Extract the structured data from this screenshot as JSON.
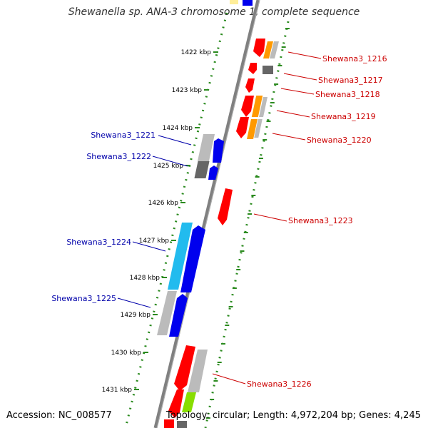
{
  "title": "Shewanella sp. ANA-3 chromosome 1, complete sequence",
  "accession_text": "Accession: NC_008577",
  "topology_text": "Topology: circular; Length: 4,972,204 bp; Genes: 4,245",
  "colors": {
    "backbone": "#808080",
    "tick": "#2a8a1e",
    "label_forward": "#cc0000",
    "label_reverse": "#0000aa",
    "red": "#ff0000",
    "blue": "#0000ee",
    "orange": "#ff9900",
    "gray": "#bbbbbb",
    "dark": "#666666",
    "cyan": "#22bbee",
    "green": "#88dd00",
    "yellow": "#ffee99"
  },
  "ticks": [
    {
      "label": "1422 kbp"
    },
    {
      "label": "1423 kbp"
    },
    {
      "label": "1424 kbp"
    },
    {
      "label": "1425 kbp"
    },
    {
      "label": "1426 kbp"
    },
    {
      "label": "1427 kbp"
    },
    {
      "label": "1428 kbp"
    },
    {
      "label": "1429 kbp"
    },
    {
      "label": "1430 kbp"
    },
    {
      "label": "1431 kbp"
    }
  ],
  "gene_labels": [
    {
      "text": "Shewana3_1216",
      "strand": "forward"
    },
    {
      "text": "Shewana3_1217",
      "strand": "forward"
    },
    {
      "text": "Shewana3_1218",
      "strand": "forward"
    },
    {
      "text": "Shewana3_1219",
      "strand": "forward"
    },
    {
      "text": "Shewana3_1220",
      "strand": "forward"
    },
    {
      "text": "Shewana3_1221",
      "strand": "reverse"
    },
    {
      "text": "Shewana3_1222",
      "strand": "reverse"
    },
    {
      "text": "Shewana3_1223",
      "strand": "forward"
    },
    {
      "text": "Shewana3_1224",
      "strand": "reverse"
    },
    {
      "text": "Shewana3_1225",
      "strand": "reverse"
    },
    {
      "text": "Shewana3_1226",
      "strand": "forward"
    }
  ]
}
